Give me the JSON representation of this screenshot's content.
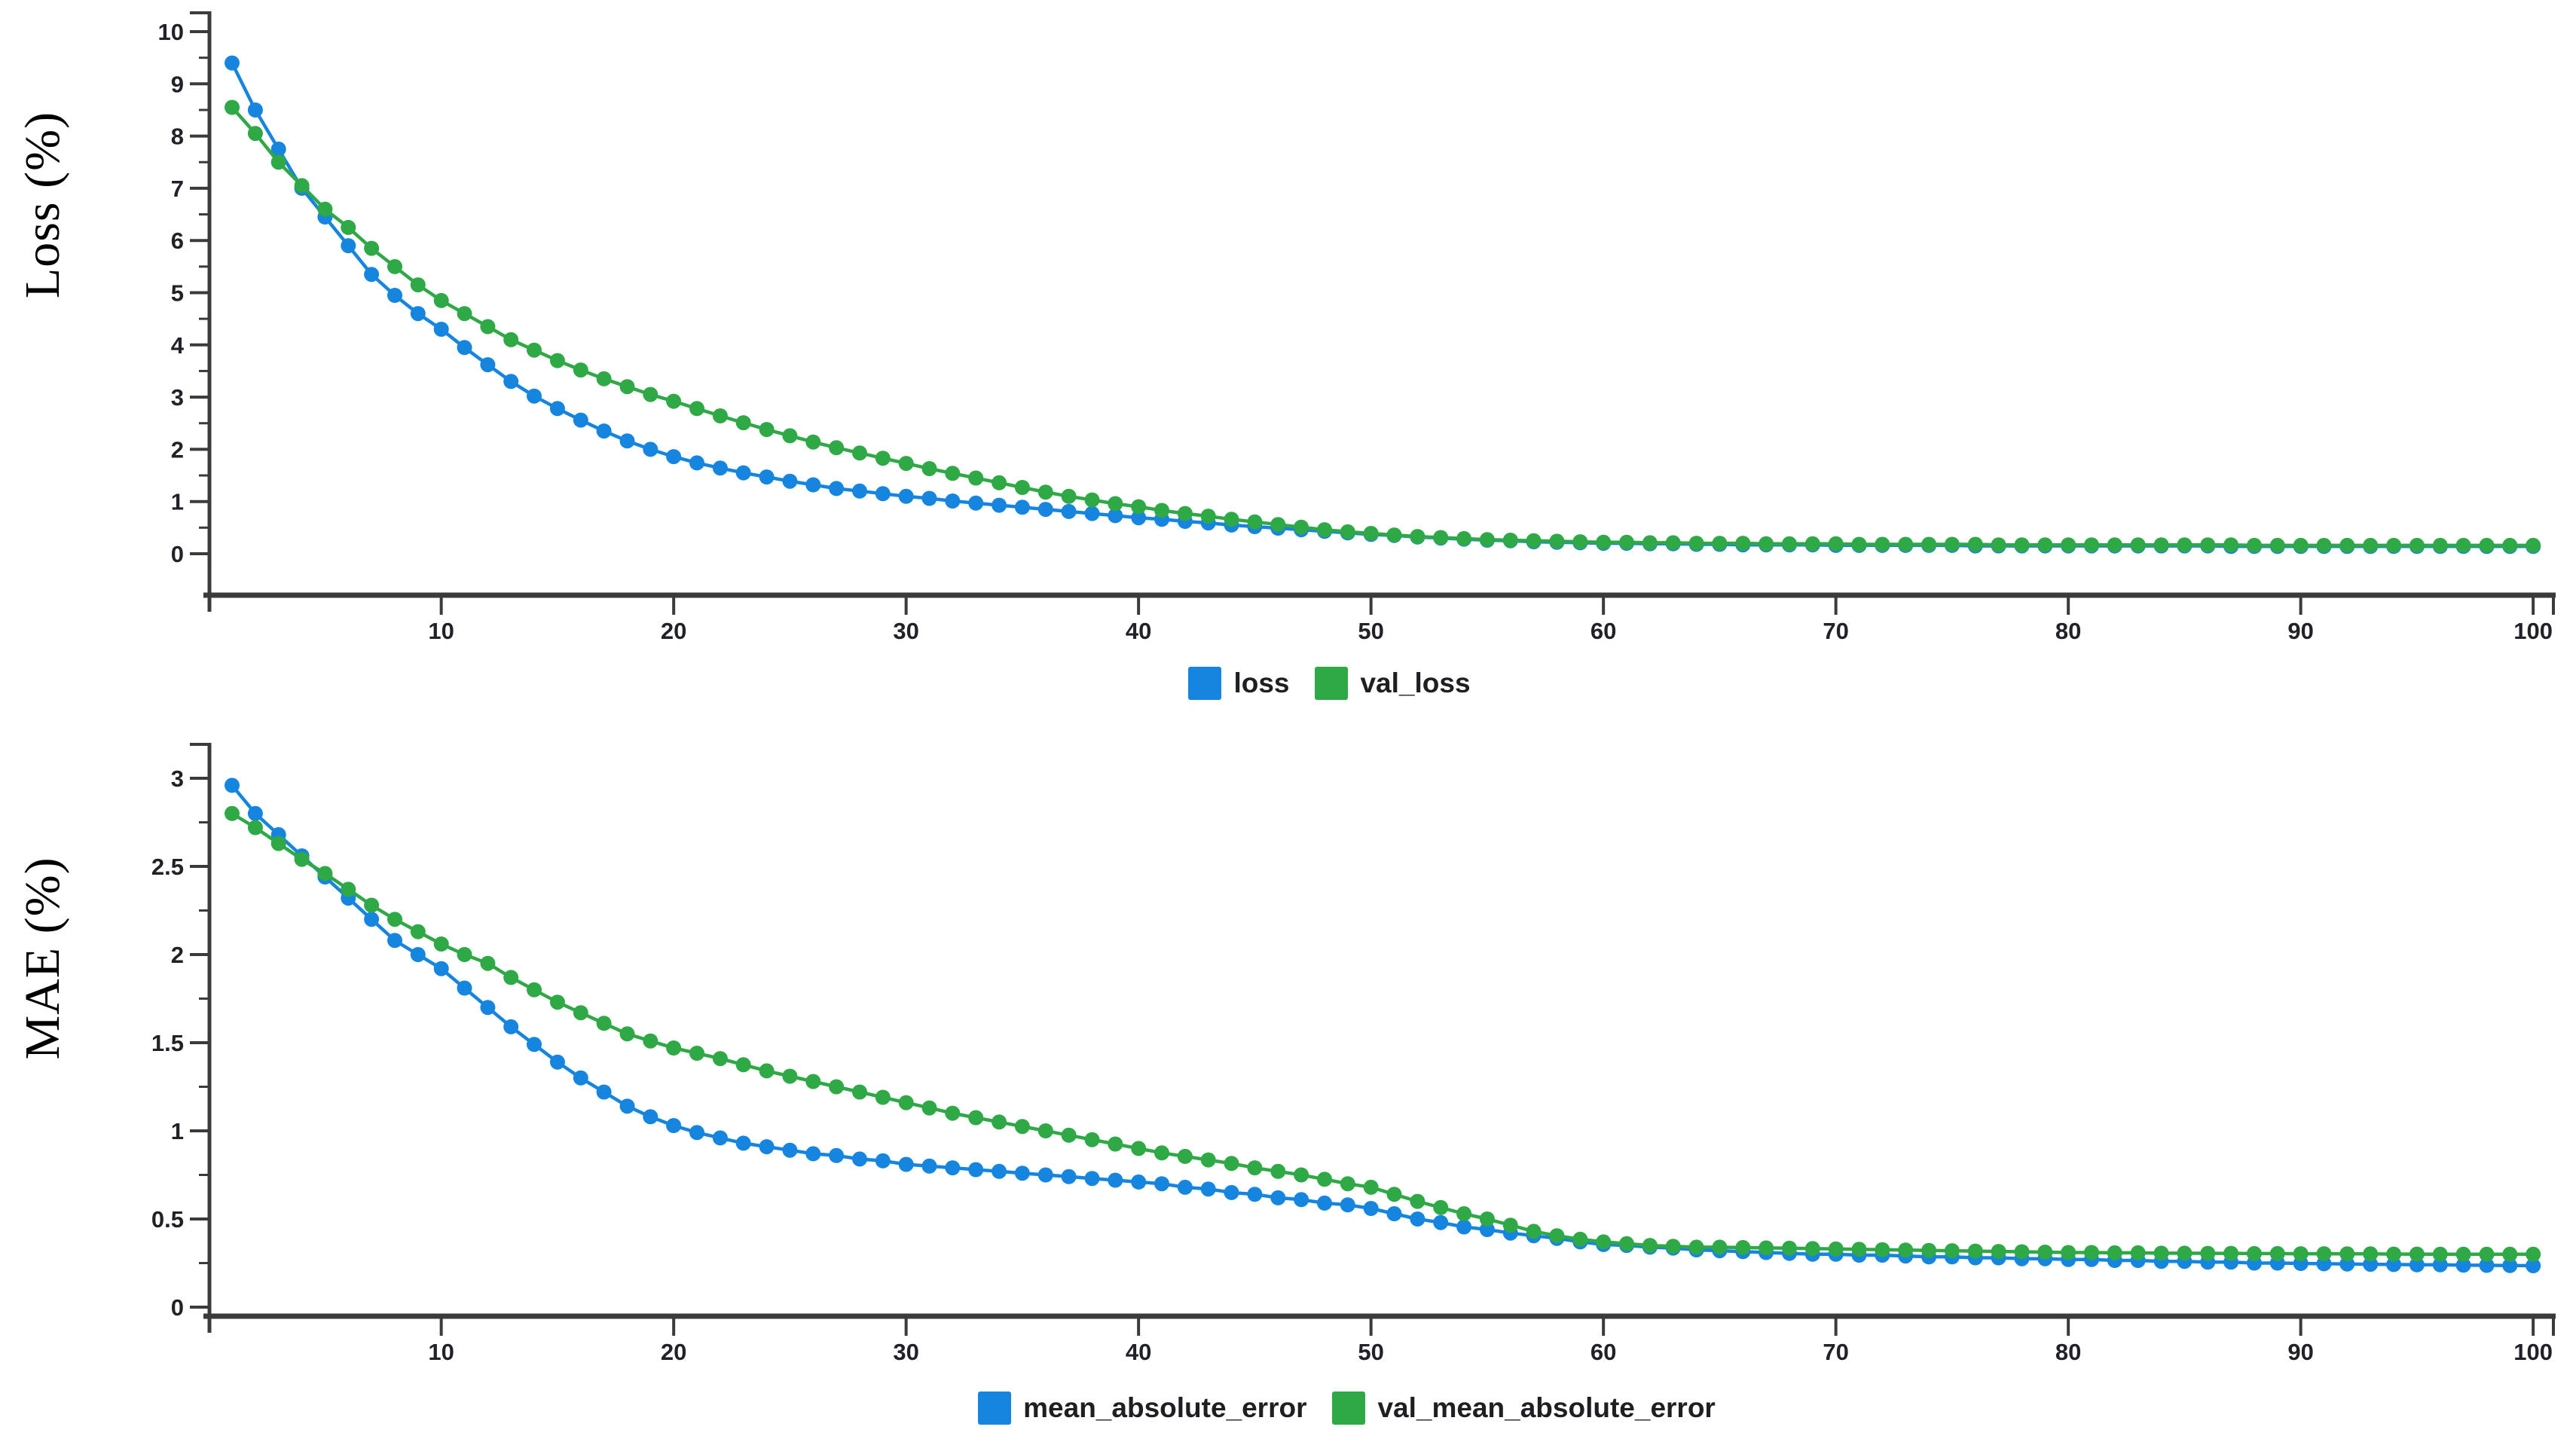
{
  "page": {
    "background": "#ffffff"
  },
  "colors": {
    "axis": "#3b3b3b",
    "tick_label": "#202227",
    "series_blue": "#1585e0",
    "series_green": "#2fa846"
  },
  "chart_data": [
    {
      "type": "line",
      "title": "",
      "xlabel": "",
      "ylabel": "Loss (%)",
      "xlim": [
        1,
        100
      ],
      "ylim": [
        0,
        10.4
      ],
      "x_start": 1,
      "x_step": 1,
      "x_ticks": [
        10,
        20,
        30,
        40,
        50,
        60,
        70,
        80,
        90,
        100
      ],
      "y_ticks": [
        0,
        1,
        2,
        3,
        4,
        5,
        6,
        7,
        8,
        9,
        10
      ],
      "y_minor_step": 0.5,
      "grid": false,
      "legend_position": "bottom-center",
      "marker": "circle",
      "series": [
        {
          "name": "loss",
          "color": "#1585e0",
          "values": [
            9.4,
            8.5,
            7.75,
            7.0,
            6.45,
            5.9,
            5.35,
            4.95,
            4.6,
            4.3,
            3.95,
            3.62,
            3.3,
            3.02,
            2.78,
            2.56,
            2.35,
            2.16,
            2.0,
            1.86,
            1.74,
            1.64,
            1.55,
            1.47,
            1.39,
            1.32,
            1.25,
            1.2,
            1.15,
            1.1,
            1.06,
            1.01,
            0.97,
            0.93,
            0.89,
            0.85,
            0.81,
            0.77,
            0.73,
            0.69,
            0.66,
            0.62,
            0.59,
            0.55,
            0.52,
            0.49,
            0.46,
            0.43,
            0.4,
            0.37,
            0.35,
            0.32,
            0.3,
            0.28,
            0.26,
            0.25,
            0.23,
            0.22,
            0.21,
            0.2,
            0.2,
            0.19,
            0.19,
            0.18,
            0.18,
            0.17,
            0.17,
            0.17,
            0.17,
            0.16,
            0.16,
            0.16,
            0.16,
            0.16,
            0.16,
            0.15,
            0.15,
            0.15,
            0.15,
            0.15,
            0.15,
            0.15,
            0.15,
            0.15,
            0.15,
            0.15,
            0.14,
            0.14,
            0.14,
            0.14,
            0.14,
            0.14,
            0.14,
            0.14,
            0.14,
            0.14,
            0.14,
            0.14,
            0.14,
            0.14
          ]
        },
        {
          "name": "val_loss",
          "color": "#2fa846",
          "values": [
            8.55,
            8.05,
            7.5,
            7.05,
            6.6,
            6.25,
            5.85,
            5.5,
            5.15,
            4.85,
            4.6,
            4.35,
            4.1,
            3.9,
            3.7,
            3.52,
            3.35,
            3.2,
            3.05,
            2.92,
            2.78,
            2.64,
            2.51,
            2.38,
            2.26,
            2.14,
            2.03,
            1.93,
            1.83,
            1.73,
            1.63,
            1.54,
            1.45,
            1.36,
            1.27,
            1.18,
            1.1,
            1.03,
            0.96,
            0.9,
            0.83,
            0.77,
            0.72,
            0.66,
            0.61,
            0.56,
            0.51,
            0.46,
            0.42,
            0.39,
            0.36,
            0.33,
            0.31,
            0.29,
            0.27,
            0.26,
            0.25,
            0.24,
            0.23,
            0.22,
            0.22,
            0.21,
            0.21,
            0.2,
            0.2,
            0.2,
            0.19,
            0.19,
            0.19,
            0.19,
            0.18,
            0.18,
            0.18,
            0.18,
            0.18,
            0.18,
            0.17,
            0.17,
            0.17,
            0.17,
            0.17,
            0.17,
            0.17,
            0.17,
            0.17,
            0.17,
            0.17,
            0.16,
            0.16,
            0.16,
            0.16,
            0.16,
            0.16,
            0.16,
            0.16,
            0.16,
            0.16,
            0.16,
            0.16,
            0.16
          ]
        }
      ]
    },
    {
      "type": "line",
      "title": "",
      "xlabel": "",
      "ylabel": "MAE (%)",
      "xlim": [
        1,
        100
      ],
      "ylim": [
        0,
        3.2
      ],
      "x_start": 1,
      "x_step": 1,
      "x_ticks": [
        10,
        20,
        30,
        40,
        50,
        60,
        70,
        80,
        90,
        100
      ],
      "y_ticks": [
        0,
        0.5,
        1,
        1.5,
        2,
        2.5,
        3
      ],
      "y_minor_step": 0.25,
      "grid": false,
      "legend_position": "bottom-center",
      "marker": "circle",
      "series": [
        {
          "name": "mean_absolute_error",
          "color": "#1585e0",
          "values": [
            2.96,
            2.8,
            2.68,
            2.56,
            2.44,
            2.32,
            2.2,
            2.08,
            2.0,
            1.92,
            1.81,
            1.7,
            1.59,
            1.49,
            1.39,
            1.3,
            1.22,
            1.14,
            1.08,
            1.03,
            0.99,
            0.96,
            0.93,
            0.91,
            0.89,
            0.87,
            0.86,
            0.84,
            0.83,
            0.81,
            0.8,
            0.79,
            0.78,
            0.77,
            0.76,
            0.75,
            0.74,
            0.73,
            0.72,
            0.71,
            0.7,
            0.68,
            0.67,
            0.65,
            0.64,
            0.62,
            0.61,
            0.59,
            0.58,
            0.56,
            0.53,
            0.5,
            0.48,
            0.455,
            0.44,
            0.42,
            0.405,
            0.39,
            0.37,
            0.355,
            0.35,
            0.34,
            0.335,
            0.325,
            0.32,
            0.315,
            0.31,
            0.305,
            0.3,
            0.3,
            0.295,
            0.295,
            0.29,
            0.285,
            0.285,
            0.28,
            0.28,
            0.275,
            0.275,
            0.27,
            0.27,
            0.265,
            0.265,
            0.26,
            0.26,
            0.255,
            0.255,
            0.25,
            0.25,
            0.248,
            0.246,
            0.245,
            0.243,
            0.242,
            0.24,
            0.24,
            0.238,
            0.237,
            0.236,
            0.235
          ]
        },
        {
          "name": "val_mean_absolute_error",
          "color": "#2fa846",
          "values": [
            2.8,
            2.72,
            2.63,
            2.54,
            2.46,
            2.37,
            2.28,
            2.2,
            2.13,
            2.06,
            2.0,
            1.95,
            1.87,
            1.8,
            1.73,
            1.67,
            1.61,
            1.55,
            1.51,
            1.47,
            1.44,
            1.41,
            1.375,
            1.34,
            1.31,
            1.28,
            1.25,
            1.22,
            1.19,
            1.16,
            1.13,
            1.1,
            1.075,
            1.05,
            1.025,
            1.0,
            0.975,
            0.95,
            0.925,
            0.9,
            0.875,
            0.855,
            0.835,
            0.815,
            0.79,
            0.77,
            0.75,
            0.725,
            0.7,
            0.68,
            0.64,
            0.6,
            0.565,
            0.53,
            0.5,
            0.465,
            0.43,
            0.405,
            0.385,
            0.37,
            0.36,
            0.35,
            0.345,
            0.34,
            0.34,
            0.338,
            0.336,
            0.334,
            0.332,
            0.33,
            0.328,
            0.326,
            0.324,
            0.322,
            0.32,
            0.318,
            0.316,
            0.314,
            0.312,
            0.31,
            0.31,
            0.308,
            0.308,
            0.306,
            0.306,
            0.305,
            0.305,
            0.304,
            0.304,
            0.303,
            0.303,
            0.302,
            0.302,
            0.301,
            0.301,
            0.3,
            0.3,
            0.3,
            0.3,
            0.3
          ]
        }
      ]
    }
  ]
}
